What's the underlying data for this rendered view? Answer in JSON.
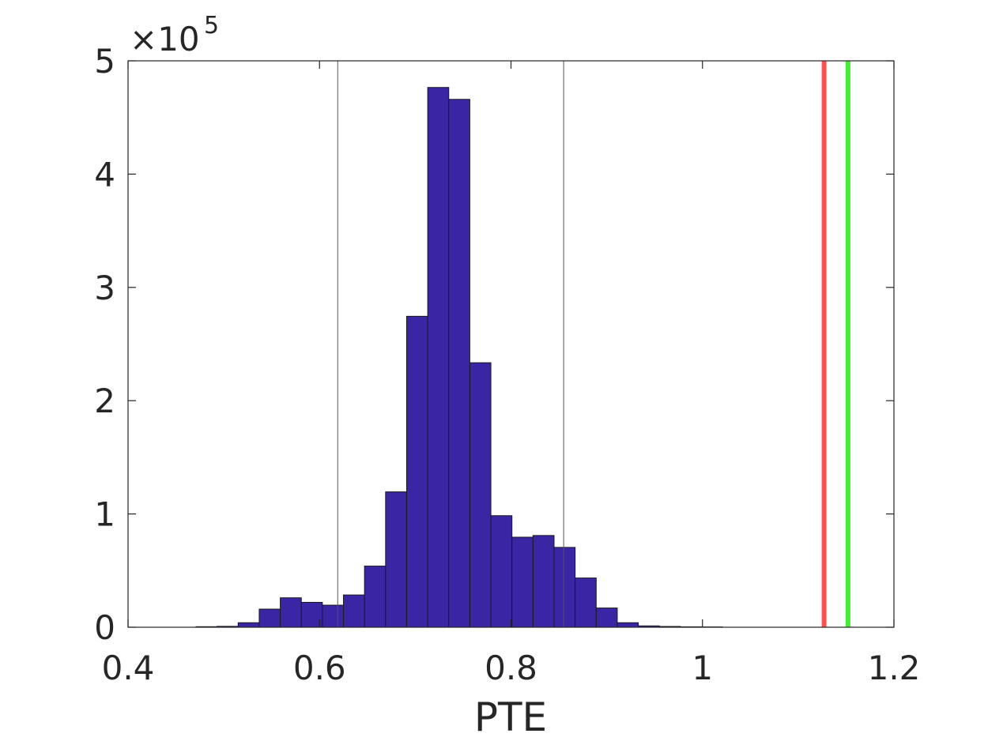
{
  "chart_data": {
    "type": "bar",
    "subtype": "histogram",
    "xlabel": "PTE",
    "ylabel": "",
    "title": "",
    "y_multiplier_label": {
      "base": "×10",
      "exponent": "5"
    },
    "xlim": [
      0.4,
      1.2
    ],
    "ylim": [
      0,
      500000
    ],
    "xticks": [
      0.4,
      0.6,
      0.8,
      1.0,
      1.2
    ],
    "xtick_labels": [
      "0.4",
      "0.6",
      "0.8",
      "1",
      "1.2"
    ],
    "yticks": [
      0,
      100000,
      200000,
      300000,
      400000,
      500000
    ],
    "ytick_labels": [
      "0",
      "1",
      "2",
      "3",
      "4",
      "5"
    ],
    "bin_width": 0.022,
    "bin_edges_start": 0.471,
    "values": [
      500,
      800,
      4000,
      16000,
      26000,
      22000,
      19500,
      28500,
      54000,
      119500,
      274500,
      476500,
      466000,
      233500,
      98500,
      79500,
      81000,
      70500,
      43500,
      17000,
      4000,
      1200,
      700,
      400,
      300
    ],
    "bar_color": "#3a25a5",
    "vertical_lines": [
      {
        "x": 0.619,
        "color": "#555555",
        "role": "thin"
      },
      {
        "x": 0.855,
        "color": "#555555",
        "role": "thin"
      },
      {
        "x": 1.127,
        "color": "#ff5050",
        "role": "thick"
      },
      {
        "x": 1.152,
        "color": "#44ee33",
        "role": "thick"
      }
    ],
    "grid": false,
    "legend": false
  }
}
